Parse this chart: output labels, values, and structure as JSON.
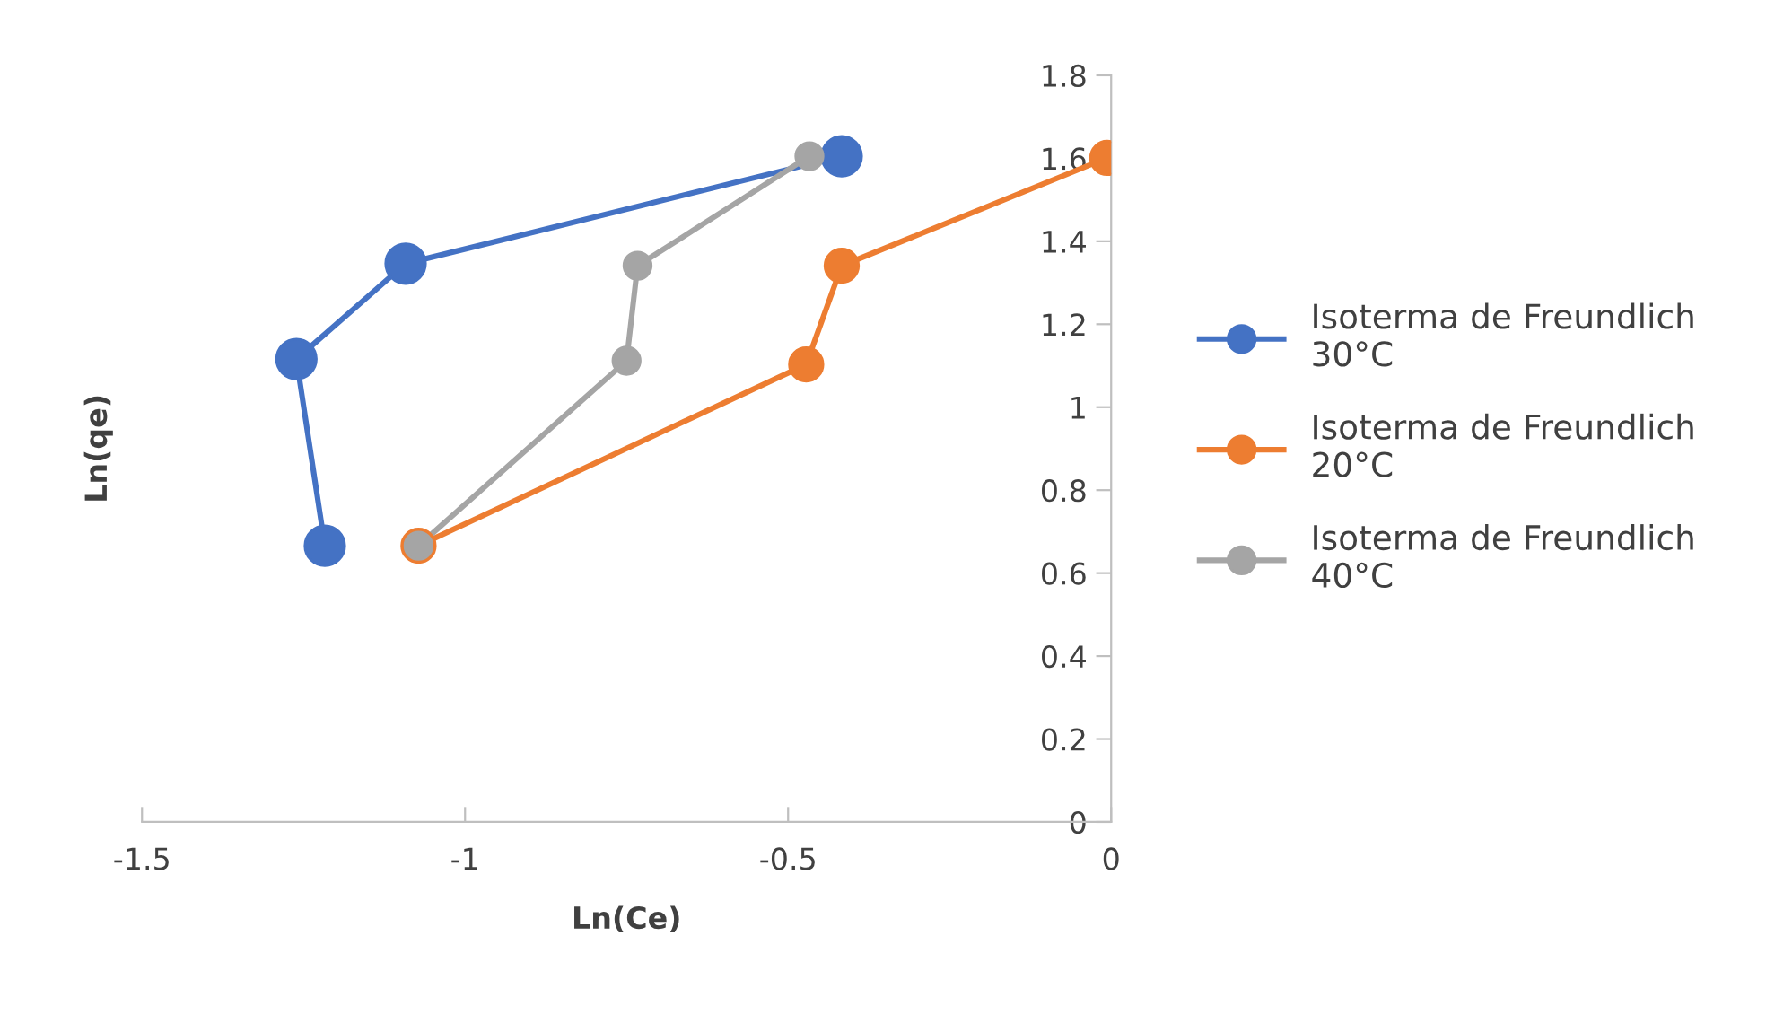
{
  "chart_data": {
    "type": "line",
    "xlabel": "Ln(Ce)",
    "ylabel": "Ln(qe)",
    "series": [
      {
        "name": "Isoterma de Freundlich 30°C",
        "color": "#4472c4",
        "x": [
          -1.217,
          -1.261,
          -1.092,
          -0.417
        ],
        "values": [
          0.666,
          1.116,
          1.346,
          1.605
        ]
      },
      {
        "name": "Isoterma de Freundlich 20°C",
        "color": "#ed7d31",
        "x": [
          -1.072,
          -0.472,
          -0.417,
          -0.006
        ],
        "values": [
          0.666,
          1.103,
          1.341,
          1.601
        ]
      },
      {
        "name": "Isoterma de Freundlich 40°C",
        "color": "#a5a5a5",
        "x": [
          -1.072,
          -0.75,
          -0.733,
          -0.467
        ],
        "values": [
          0.666,
          1.112,
          1.341,
          1.605
        ]
      }
    ],
    "xlim": [
      -1.5,
      0
    ],
    "xticks": [
      -1.5,
      -1,
      -0.5,
      0
    ],
    "ylim": [
      0,
      1.8
    ],
    "yticks": [
      0,
      0.2,
      0.4,
      0.6,
      0.8,
      1,
      1.2,
      1.4,
      1.6,
      1.8
    ],
    "marker": "circle",
    "line_style": "solid",
    "grid": false,
    "legend": "right"
  }
}
